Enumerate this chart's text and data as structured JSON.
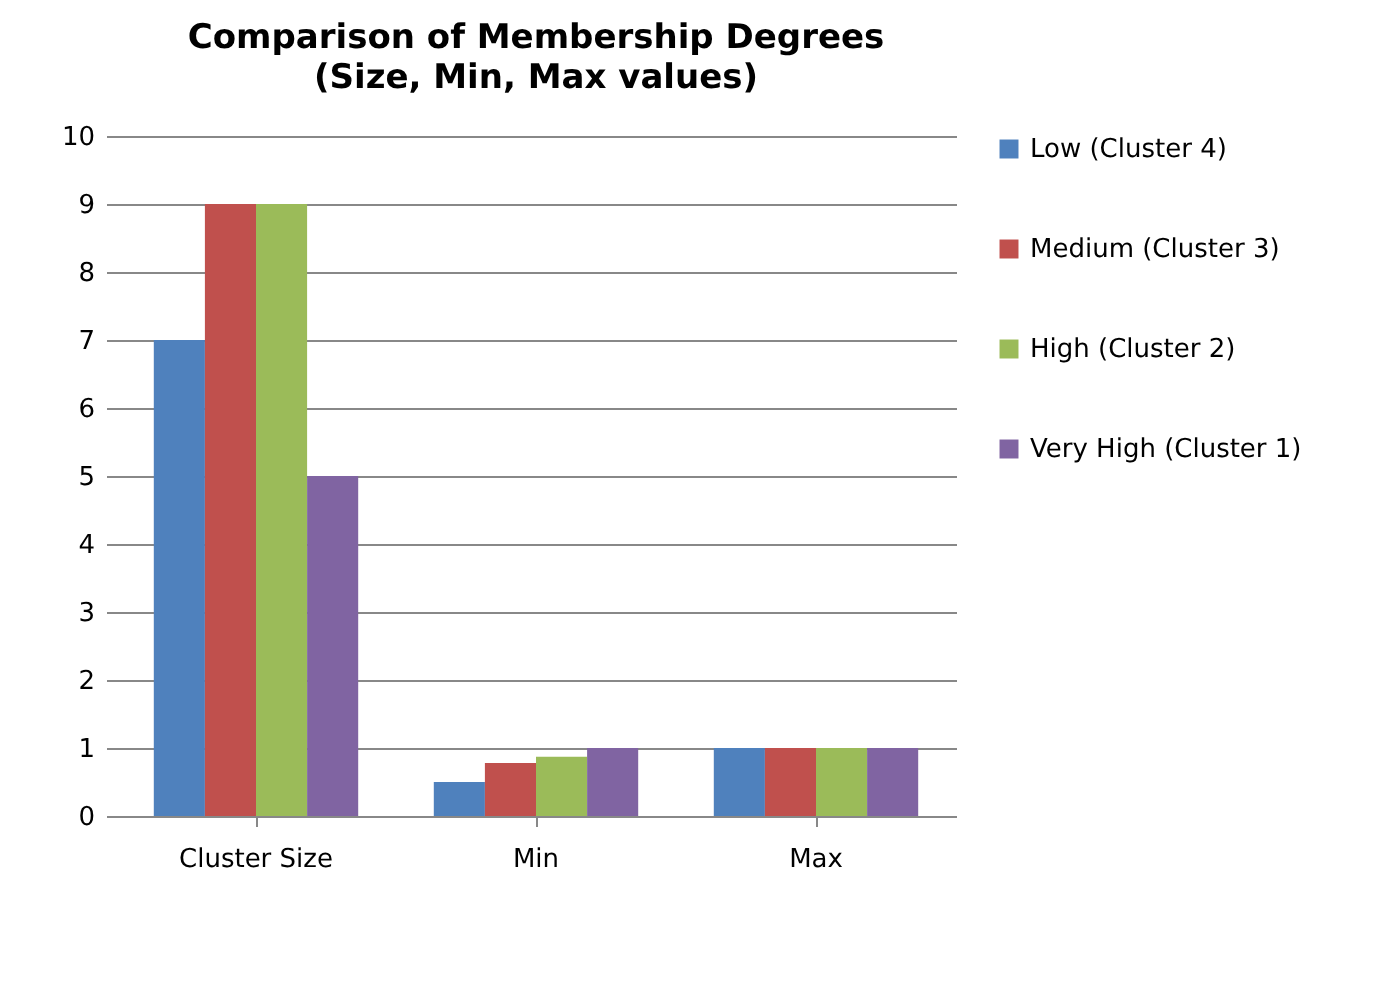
{
  "chart_data": {
    "type": "bar",
    "title": "Comparison of Membership Degrees",
    "subtitle": "(Size, Min, Max values)",
    "categories": [
      "Cluster Size",
      "Min",
      "Max"
    ],
    "series": [
      {
        "name": "Low (Cluster 4)",
        "color": "#4f81bd",
        "values": [
          7,
          0.5,
          1
        ]
      },
      {
        "name": "Medium (Cluster 3)",
        "color": "#c0504d",
        "values": [
          9,
          0.78,
          1
        ]
      },
      {
        "name": "High (Cluster 2)",
        "color": "#9bbb59",
        "values": [
          9,
          0.87,
          1
        ]
      },
      {
        "name": "Very High (Cluster 1)",
        "color": "#8064a2",
        "values": [
          5,
          1,
          1
        ]
      }
    ],
    "ylim": [
      0,
      10
    ],
    "yticks": [
      0,
      1,
      2,
      3,
      4,
      5,
      6,
      7,
      8,
      9,
      10
    ],
    "grid": "y",
    "legend": "right"
  }
}
